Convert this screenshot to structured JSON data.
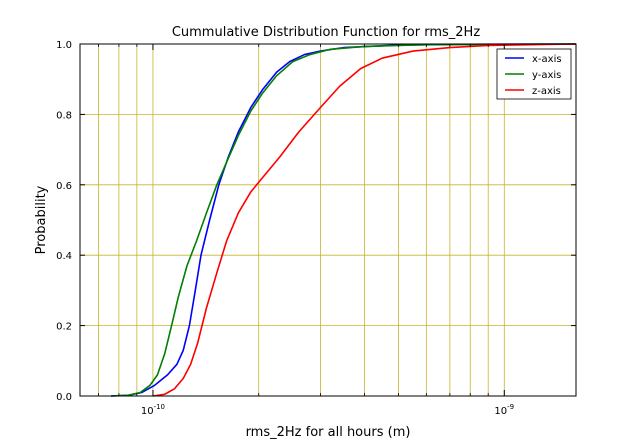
{
  "chart_data": {
    "type": "line",
    "title": "Cummulative Distribution Function for rms_2Hz",
    "xlabel": "rms_2Hz for all hours (m)",
    "ylabel": "Probability",
    "xscale": "log",
    "xlim": [
      6.2e-11,
      1.6e-09
    ],
    "ylim": [
      0,
      1
    ],
    "grid": true,
    "legend_position": "top-right",
    "x_ticks": [
      {
        "value": 1e-10,
        "label": "10",
        "exponent": "-10"
      },
      {
        "value": 1e-09,
        "label": "10",
        "exponent": "-9"
      }
    ],
    "x_gridlines": [
      7e-11,
      8e-11,
      9e-11,
      1e-10,
      2e-10,
      3e-10,
      4e-10,
      5e-10,
      6e-10,
      7e-10,
      8e-10,
      9e-10,
      1e-09
    ],
    "y_ticks": [
      {
        "value": 0.0,
        "label": "0.0"
      },
      {
        "value": 0.2,
        "label": "0.2"
      },
      {
        "value": 0.4,
        "label": "0.4"
      },
      {
        "value": 0.6,
        "label": "0.6"
      },
      {
        "value": 0.8,
        "label": "0.8"
      },
      {
        "value": 1.0,
        "label": "1.0"
      }
    ],
    "series": [
      {
        "name": "x-axis",
        "color": "#0000ff",
        "points": [
          [
            7.6e-11,
            0.0
          ],
          [
            8.5e-11,
            0.002
          ],
          [
            9.3e-11,
            0.01
          ],
          [
            1.01e-10,
            0.03
          ],
          [
            1.1e-10,
            0.06
          ],
          [
            1.17e-10,
            0.09
          ],
          [
            1.22e-10,
            0.13
          ],
          [
            1.27e-10,
            0.2
          ],
          [
            1.32e-10,
            0.3
          ],
          [
            1.37e-10,
            0.4
          ],
          [
            1.45e-10,
            0.5
          ],
          [
            1.54e-10,
            0.6
          ],
          [
            1.64e-10,
            0.68
          ],
          [
            1.75e-10,
            0.75
          ],
          [
            1.9e-10,
            0.82
          ],
          [
            2.05e-10,
            0.87
          ],
          [
            2.25e-10,
            0.92
          ],
          [
            2.45e-10,
            0.95
          ],
          [
            2.7e-10,
            0.97
          ],
          [
            3e-10,
            0.98
          ],
          [
            3.5e-10,
            0.99
          ],
          [
            5e-10,
            0.997
          ],
          [
            8e-10,
            0.999
          ],
          [
            1.6e-09,
            1.0
          ]
        ]
      },
      {
        "name": "y-axis",
        "color": "#008000",
        "points": [
          [
            7.6e-11,
            0.0
          ],
          [
            8.5e-11,
            0.002
          ],
          [
            9.2e-11,
            0.01
          ],
          [
            9.8e-11,
            0.03
          ],
          [
            1.03e-10,
            0.06
          ],
          [
            1.08e-10,
            0.12
          ],
          [
            1.13e-10,
            0.2
          ],
          [
            1.18e-10,
            0.28
          ],
          [
            1.25e-10,
            0.37
          ],
          [
            1.33e-10,
            0.44
          ],
          [
            1.42e-10,
            0.52
          ],
          [
            1.52e-10,
            0.6
          ],
          [
            1.63e-10,
            0.67
          ],
          [
            1.75e-10,
            0.74
          ],
          [
            1.9e-10,
            0.81
          ],
          [
            2.05e-10,
            0.86
          ],
          [
            2.25e-10,
            0.91
          ],
          [
            2.5e-10,
            0.95
          ],
          [
            2.8e-10,
            0.97
          ],
          [
            3.2e-10,
            0.985
          ],
          [
            4e-10,
            0.993
          ],
          [
            6e-10,
            0.998
          ],
          [
            1e-09,
            0.999
          ],
          [
            1.6e-09,
            1.0
          ]
        ]
      },
      {
        "name": "z-axis",
        "color": "#ff0000",
        "points": [
          [
            1e-10,
            0.0
          ],
          [
            1.08e-10,
            0.005
          ],
          [
            1.15e-10,
            0.02
          ],
          [
            1.22e-10,
            0.05
          ],
          [
            1.28e-10,
            0.09
          ],
          [
            1.34e-10,
            0.15
          ],
          [
            1.42e-10,
            0.25
          ],
          [
            1.52e-10,
            0.35
          ],
          [
            1.62e-10,
            0.44
          ],
          [
            1.75e-10,
            0.52
          ],
          [
            1.9e-10,
            0.58
          ],
          [
            2.05e-10,
            0.62
          ],
          [
            2.3e-10,
            0.68
          ],
          [
            2.6e-10,
            0.75
          ],
          [
            3e-10,
            0.82
          ],
          [
            3.4e-10,
            0.88
          ],
          [
            3.9e-10,
            0.93
          ],
          [
            4.5e-10,
            0.96
          ],
          [
            5.5e-10,
            0.98
          ],
          [
            7e-10,
            0.99
          ],
          [
            9e-10,
            0.996
          ],
          [
            1.6e-09,
            1.0
          ]
        ]
      }
    ]
  }
}
